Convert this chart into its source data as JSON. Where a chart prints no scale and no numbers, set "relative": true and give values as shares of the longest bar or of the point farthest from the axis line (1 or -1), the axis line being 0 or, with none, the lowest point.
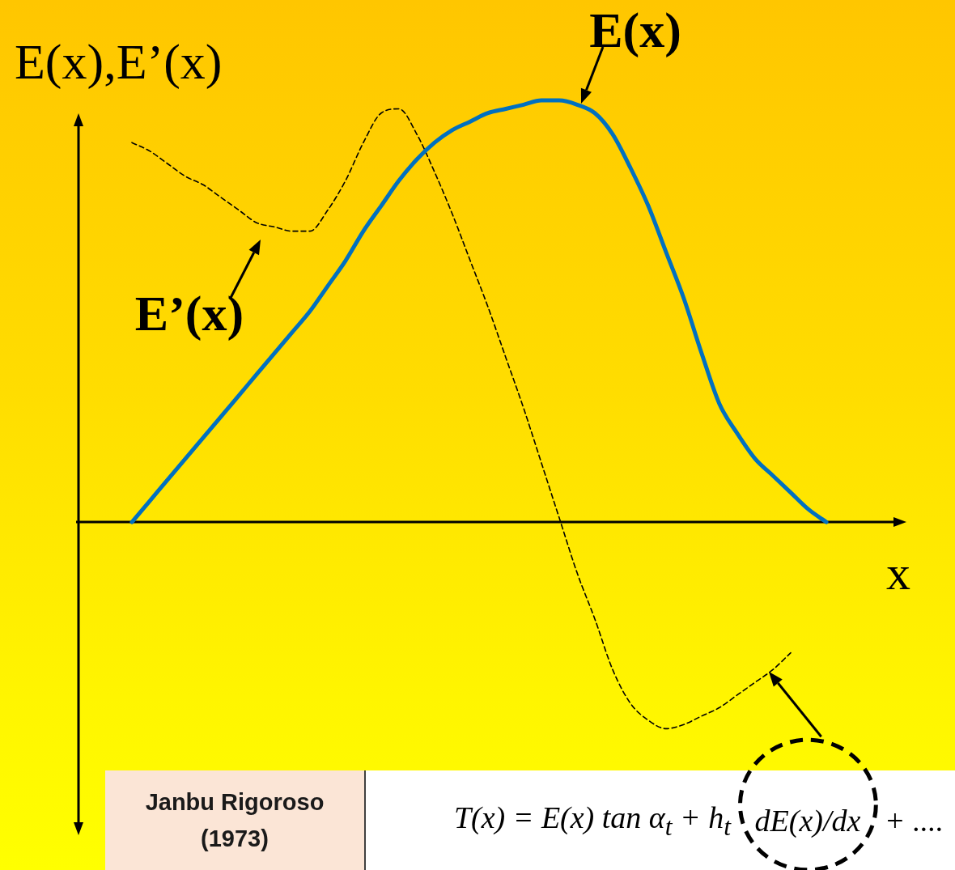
{
  "chart_data": {
    "type": "line",
    "relative": true,
    "ylabel": "E(x),E’(x)",
    "xlabel": "x",
    "categories": [
      null,
      null,
      null,
      null,
      null,
      null,
      null,
      null,
      null,
      null,
      null,
      null,
      null,
      null,
      null,
      null,
      null,
      null,
      null,
      null,
      null,
      null,
      null,
      null,
      null,
      null,
      null,
      null,
      null,
      null,
      null,
      null,
      null,
      null,
      null,
      null,
      null,
      null,
      null,
      null,
      null,
      null,
      null,
      null,
      null,
      null,
      null
    ],
    "series": [
      {
        "name": "E(x)",
        "color": "#0070c0",
        "values": [
          null,
          null,
          null,
          0,
          0.05,
          0.1,
          0.15,
          0.2,
          0.25,
          0.3,
          0.35,
          0.4,
          0.45,
          0.5,
          0.56,
          0.62,
          0.69,
          0.75,
          0.81,
          0.86,
          0.9,
          0.93,
          0.95,
          0.97,
          0.98,
          0.99,
          1.0,
          1.0,
          0.99,
          0.97,
          0.92,
          0.84,
          0.75,
          0.64,
          0.53,
          0.4,
          0.28,
          0.21,
          0.15,
          0.11,
          0.07,
          0.03,
          0,
          null,
          null,
          null,
          null
        ]
      },
      {
        "name": "E’(x)",
        "color": "#000000",
        "line_style": "dashed",
        "values": [
          null,
          null,
          null,
          0.9,
          0.88,
          0.85,
          0.82,
          0.8,
          0.77,
          0.74,
          0.71,
          0.7,
          0.69,
          0.69,
          0.74,
          0.81,
          0.9,
          0.97,
          0.98,
          0.92,
          0.83,
          0.73,
          0.62,
          0.51,
          0.39,
          0.27,
          0.14,
          0.01,
          -0.12,
          -0.23,
          -0.35,
          -0.43,
          -0.47,
          -0.49,
          -0.48,
          -0.46,
          -0.44,
          -0.41,
          -0.38,
          -0.35,
          -0.31,
          null,
          null,
          null,
          null,
          null,
          null
        ]
      }
    ],
    "annotations": [
      "Janbu Rigoroso (1973)",
      "T(x) = E(x) tan α$_{t}$ + h$_{t}$ dE(x)/dx + ...."
    ]
  }
}
